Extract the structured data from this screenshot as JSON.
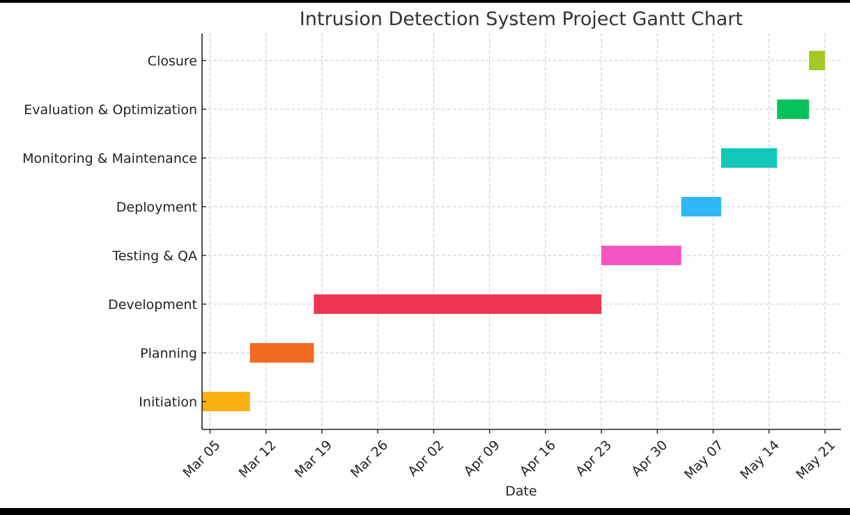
{
  "chart_data": {
    "type": "gantt",
    "title": "Intrusion Detection System Project Gantt Chart",
    "xlabel": "Date",
    "ylabel": "",
    "x_range": [
      "2024-03-04",
      "2024-05-23"
    ],
    "grid": true,
    "x_ticks": [
      {
        "date": "2024-03-05",
        "label": "Mar 05"
      },
      {
        "date": "2024-03-12",
        "label": "Mar 12"
      },
      {
        "date": "2024-03-19",
        "label": "Mar 19"
      },
      {
        "date": "2024-03-26",
        "label": "Mar 26"
      },
      {
        "date": "2024-04-02",
        "label": "Apr 02"
      },
      {
        "date": "2024-04-09",
        "label": "Apr 09"
      },
      {
        "date": "2024-04-16",
        "label": "Apr 16"
      },
      {
        "date": "2024-04-23",
        "label": "Apr 23"
      },
      {
        "date": "2024-04-30",
        "label": "Apr 30"
      },
      {
        "date": "2024-05-07",
        "label": "May 07"
      },
      {
        "date": "2024-05-14",
        "label": "May 14"
      },
      {
        "date": "2024-05-21",
        "label": "May 21"
      }
    ],
    "tasks": [
      {
        "name": "Initiation",
        "start": "2024-03-04",
        "end": "2024-03-09",
        "color": "#FBAF12"
      },
      {
        "name": "Planning",
        "start": "2024-03-10",
        "end": "2024-03-17",
        "color": "#F06A1F"
      },
      {
        "name": "Development",
        "start": "2024-03-18",
        "end": "2024-04-22",
        "color": "#EF3451"
      },
      {
        "name": "Testing & QA",
        "start": "2024-04-23",
        "end": "2024-05-02",
        "color": "#F553C2"
      },
      {
        "name": "Deployment",
        "start": "2024-05-03",
        "end": "2024-05-07",
        "color": "#2DB7F5"
      },
      {
        "name": "Monitoring & Maintenance",
        "start": "2024-05-08",
        "end": "2024-05-14",
        "color": "#12C8BA"
      },
      {
        "name": "Evaluation & Optimization",
        "start": "2024-05-15",
        "end": "2024-05-18",
        "color": "#05C15A"
      },
      {
        "name": "Closure",
        "start": "2024-05-19",
        "end": "2024-05-20",
        "color": "#A4C926"
      }
    ]
  }
}
